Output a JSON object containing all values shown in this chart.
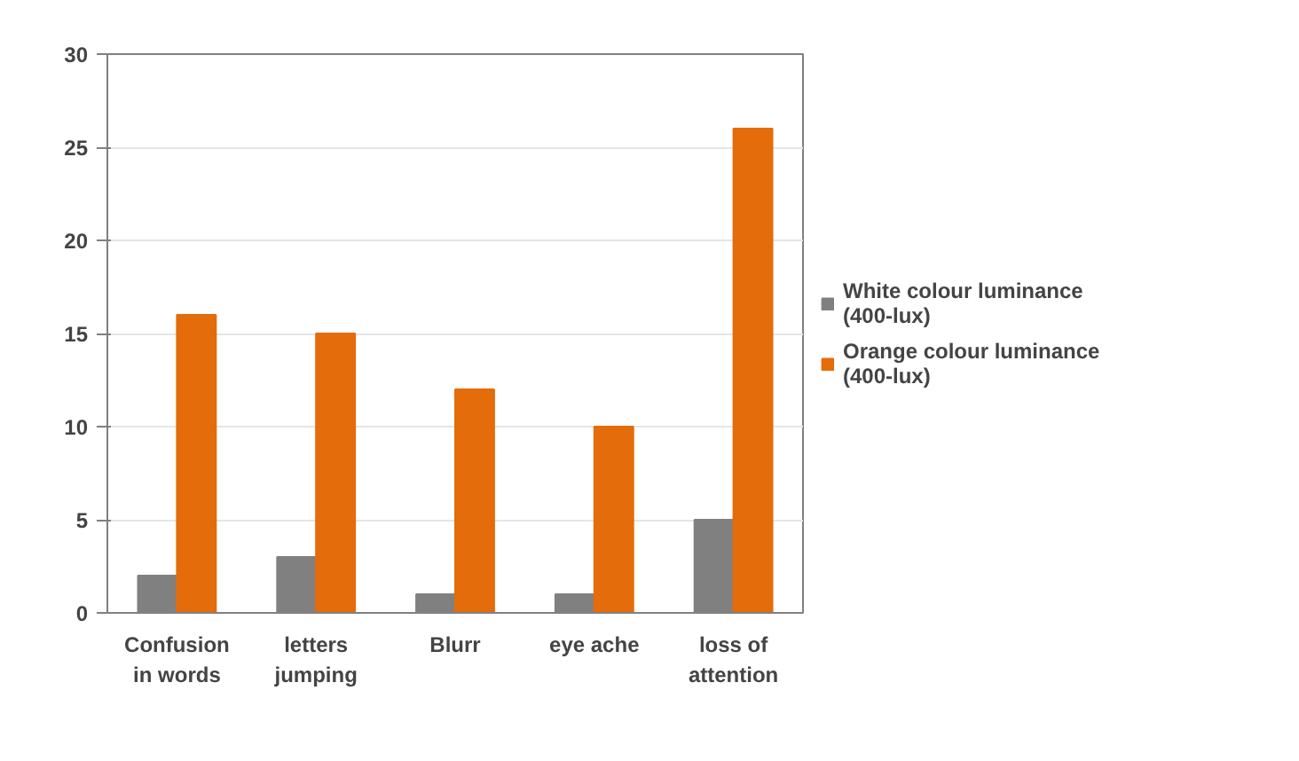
{
  "chart_data": {
    "type": "bar",
    "categories": [
      "Confusion in words",
      "letters jumping",
      "Blurr",
      "eye ache",
      "loss of attention"
    ],
    "series": [
      {
        "name": "White colour luminance (400-lux)",
        "color": "#808080",
        "values": [
          2,
          3,
          1,
          1,
          5
        ]
      },
      {
        "name": "Orange colour luminance (400-lux)",
        "color": "#e46c0a",
        "values": [
          16,
          15,
          12,
          10,
          26
        ]
      }
    ],
    "ylim": [
      0,
      30
    ],
    "yticks": [
      0,
      5,
      10,
      15,
      20,
      25,
      30
    ],
    "grid": "y",
    "legend": "right"
  }
}
